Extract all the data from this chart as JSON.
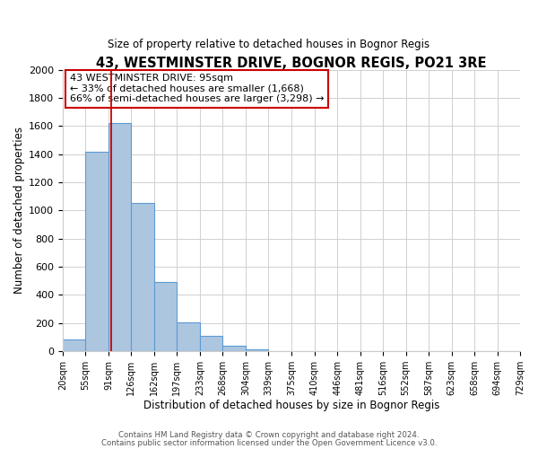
{
  "title": "43, WESTMINSTER DRIVE, BOGNOR REGIS, PO21 3RE",
  "subtitle": "Size of property relative to detached houses in Bognor Regis",
  "xlabel": "Distribution of detached houses by size in Bognor Regis",
  "ylabel": "Number of detached properties",
  "bin_labels": [
    "20sqm",
    "55sqm",
    "91sqm",
    "126sqm",
    "162sqm",
    "197sqm",
    "233sqm",
    "268sqm",
    "304sqm",
    "339sqm",
    "375sqm",
    "410sqm",
    "446sqm",
    "481sqm",
    "516sqm",
    "552sqm",
    "587sqm",
    "623sqm",
    "658sqm",
    "694sqm",
    "729sqm"
  ],
  "bin_edges": [
    20,
    55,
    91,
    126,
    162,
    197,
    233,
    268,
    304,
    339,
    375,
    410,
    446,
    481,
    516,
    552,
    587,
    623,
    658,
    694,
    729
  ],
  "bar_heights": [
    85,
    1415,
    1620,
    1050,
    490,
    205,
    110,
    40,
    15,
    0,
    0,
    0,
    0,
    0,
    0,
    0,
    0,
    0,
    0,
    0
  ],
  "bar_color": "#adc6e0",
  "bar_edge_color": "#5b9bd5",
  "property_value": 95,
  "property_line_color": "#cc0000",
  "annotation_title": "43 WESTMINSTER DRIVE: 95sqm",
  "annotation_line1": "← 33% of detached houses are smaller (1,668)",
  "annotation_line2": "66% of semi-detached houses are larger (3,298) →",
  "annotation_box_color": "#ffffff",
  "annotation_border_color": "#cc0000",
  "ylim": [
    0,
    2000
  ],
  "yticks": [
    0,
    200,
    400,
    600,
    800,
    1000,
    1200,
    1400,
    1600,
    1800,
    2000
  ],
  "footer1": "Contains HM Land Registry data © Crown copyright and database right 2024.",
  "footer2": "Contains public sector information licensed under the Open Government Licence v3.0.",
  "background_color": "#ffffff",
  "grid_color": "#d0d0d0"
}
